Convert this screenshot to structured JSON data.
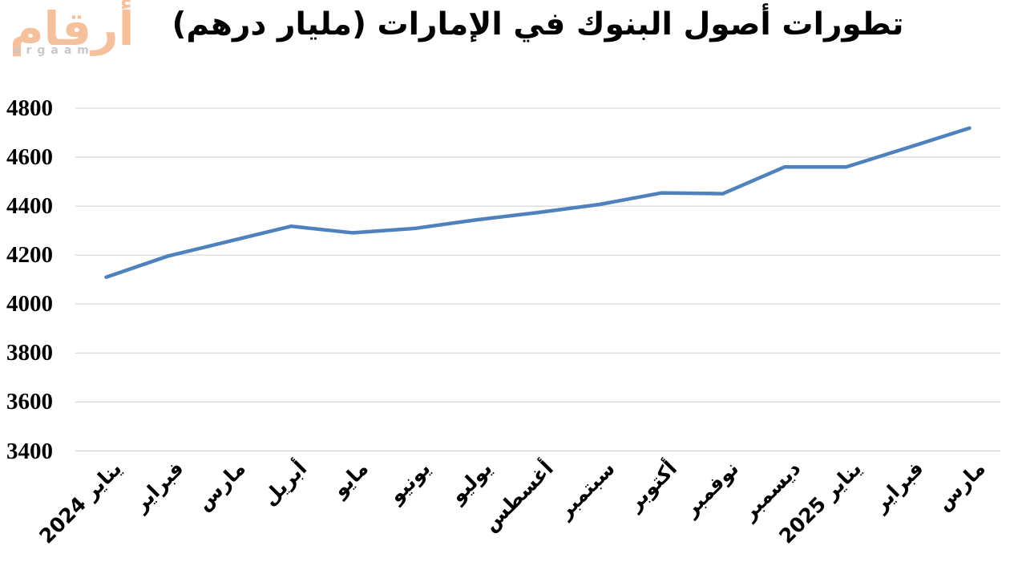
{
  "logo": {
    "arabic": "أرقام",
    "latin": "argaam",
    "arabic_color": "#F5C19C",
    "latin_color": "#C8C8C8"
  },
  "chart_data": {
    "type": "line",
    "title": "تطورات أصول البنوك في الإمارات (مليار درهم)",
    "categories": [
      "يناير 2024",
      "فبراير",
      "مارس",
      "أبريل",
      "مايو",
      "يونيو",
      "يوليو",
      "أغسطس",
      "سبتمبر",
      "أكتوبر",
      "نوفمبر",
      "ديسمبر",
      "يناير 2025",
      "فبراير",
      "مارس"
    ],
    "values": [
      4110,
      4196,
      4257,
      4318,
      4291,
      4309,
      4344,
      4374,
      4407,
      4454,
      4451,
      4560,
      4560,
      4639,
      4719
    ],
    "xlabel": "",
    "ylabel": "",
    "ylim": [
      3400,
      4800
    ],
    "yticks": [
      3400,
      3600,
      3800,
      4000,
      4200,
      4400,
      4600,
      4800
    ],
    "grid": "horizontal-only",
    "legend_position": "none",
    "x_label_rotation_deg": 45,
    "line_color": "#4F81BD",
    "gridline_color": "#D9D9D9",
    "axis_line_color": "#D0D0D0",
    "text_color": "#000000"
  }
}
